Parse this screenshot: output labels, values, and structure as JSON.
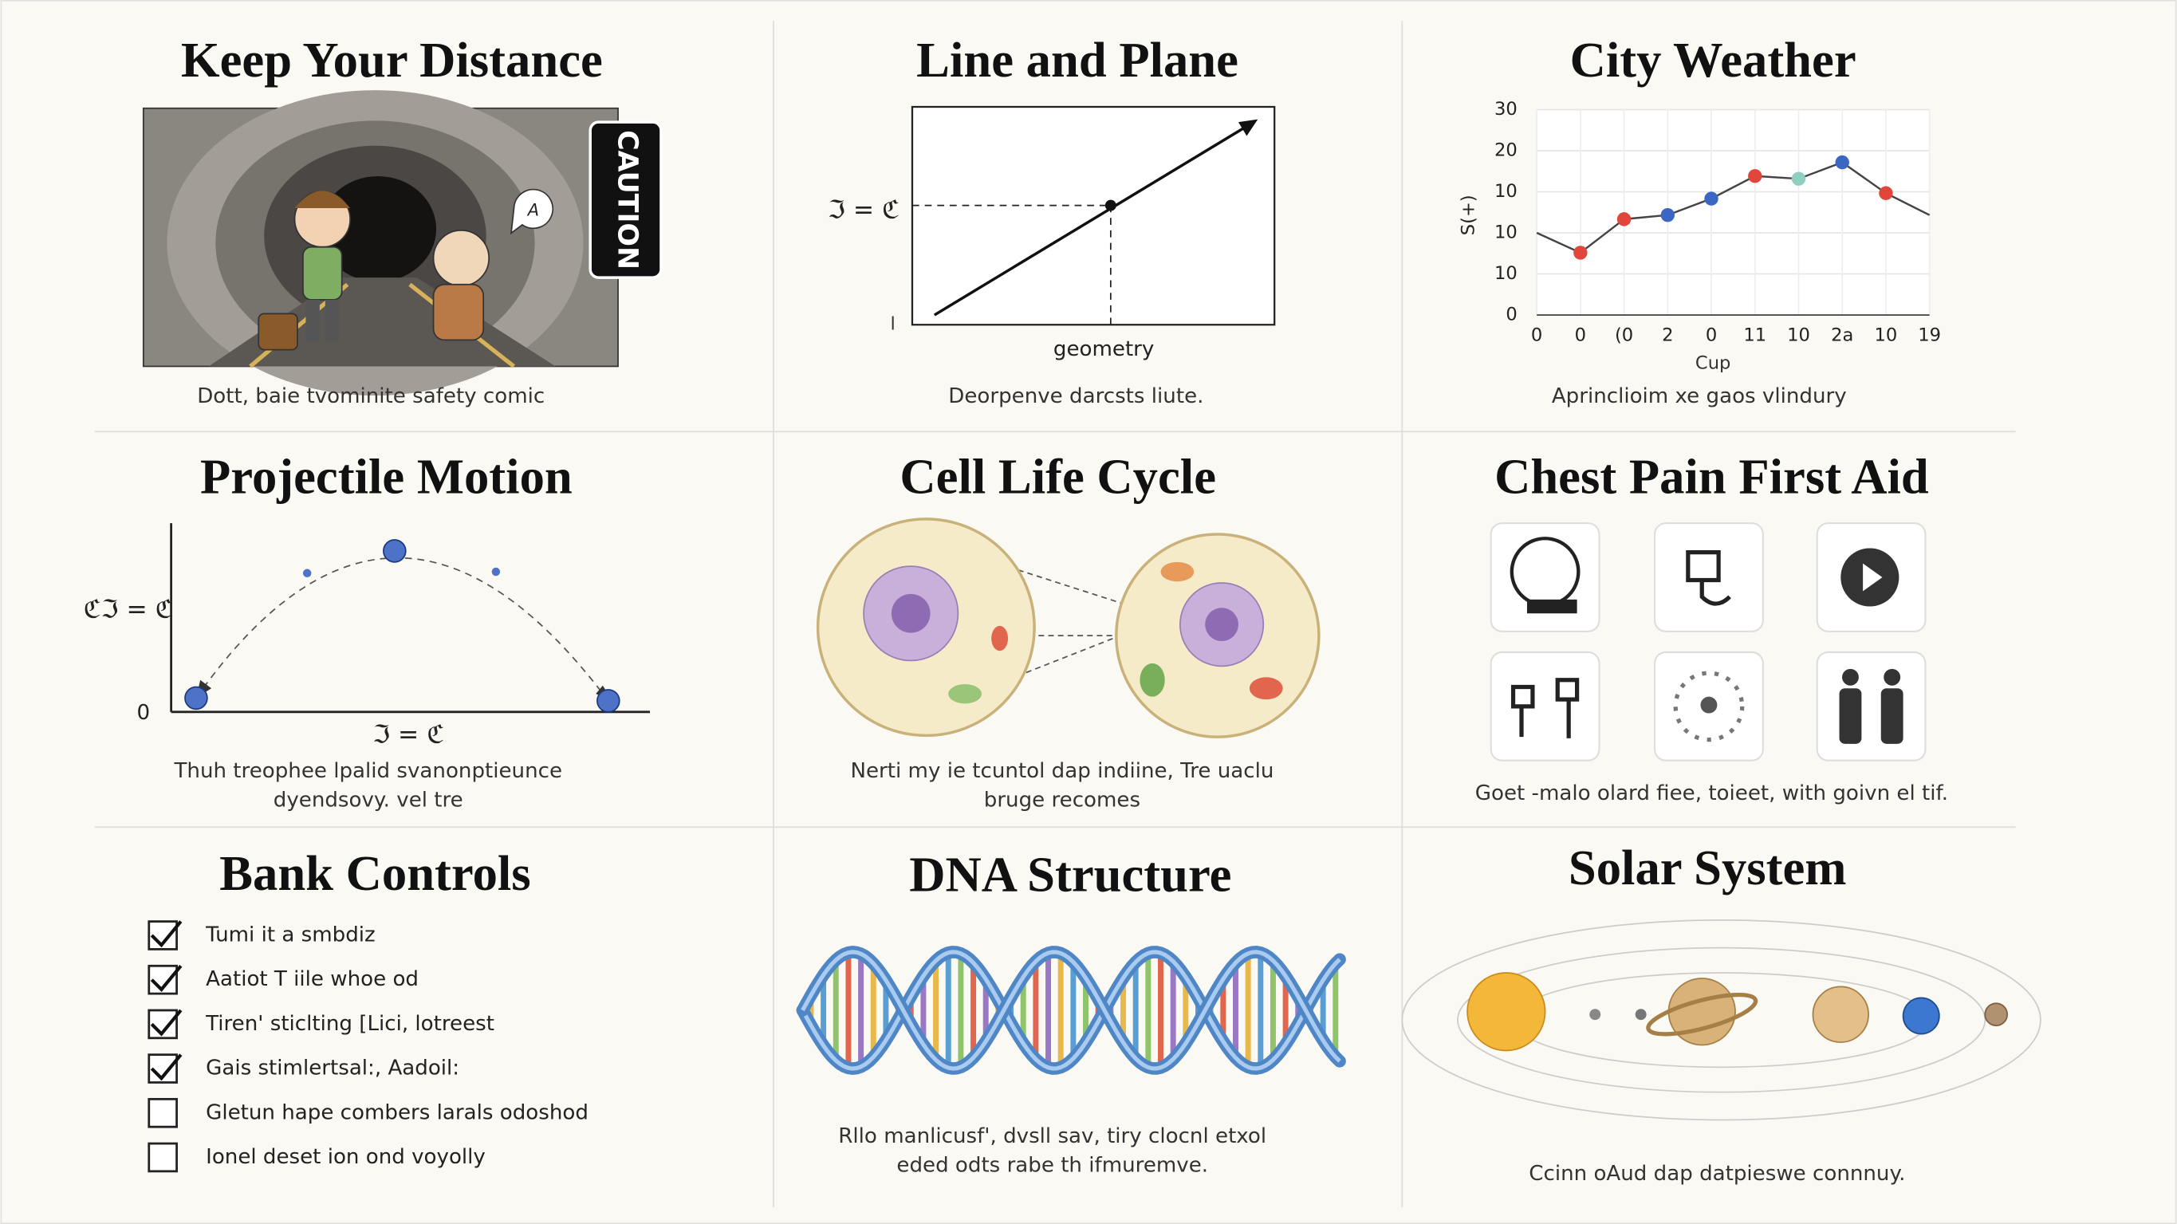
{
  "distance": {
    "title": "Keep Your Distance",
    "sign": "CAUTION",
    "bubble": "A",
    "caption": "Dott, baie tvominite safety comic"
  },
  "line_plane": {
    "title": "Line and Plane",
    "y_label": "ℑ = ℭ",
    "origin_label": "l",
    "x_label": "geometry",
    "caption": "Deorpenve darcsts liute."
  },
  "weather": {
    "type": "line",
    "title": "City Weather",
    "categories": [
      "0",
      "0",
      "(0",
      "2",
      "0",
      "11",
      "10",
      "2a",
      "10",
      "19"
    ],
    "values": [
      12.0,
      9.1,
      14.0,
      14.6,
      17.0,
      20.3,
      19.9,
      22.3,
      17.8,
      14.6
    ],
    "colors": [
      null,
      "#e0463c",
      "#e0463c",
      "#3a66c4",
      "#3a66c4",
      "#e0463c",
      "#8fcfc0",
      "#3a66c4",
      "#e0463c",
      null
    ],
    "line_color": "#444",
    "ylim": [
      0,
      30
    ],
    "yticks": [
      0,
      {
        "value": 6,
        "label": "10"
      },
      {
        "value": 12,
        "label": "10"
      },
      {
        "value": 18,
        "label": "10"
      },
      {
        "value": 24,
        "label": "20"
      },
      30
    ],
    "grid": true,
    "y_label": "S(+)",
    "x_label": "Cup",
    "caption": "Aprinclioim xe gaos vlindury"
  },
  "projectile": {
    "title": "Projectile Motion",
    "y_label": "ℭℑ = ℭ",
    "origin_label": "0",
    "x_label": "ℑ = ℭ",
    "caption": [
      "Thuh treophee lpalid svanonptieunce",
      "dyendsovy. vel tre"
    ]
  },
  "cell": {
    "title": "Cell Life Cycle",
    "caption": [
      "Nerti my ie tcuntol dap indiine, Tre uaclu",
      "bruge recomes"
    ]
  },
  "first_aid": {
    "title": "Chest Pain First Aid",
    "caption": "Goet -malo olard fiee, toieet, with goivn el tif."
  },
  "bank": {
    "title": "Bank Controls",
    "items": [
      {
        "label": "Tumi it a smbdiz",
        "checked": true
      },
      {
        "label": "Aatiot T iile whoe od",
        "checked": true
      },
      {
        "label": "Tiren' sticlting [Lici, lotreest",
        "checked": true
      },
      {
        "label": "Gais stimlertsal:, Aadoil:",
        "checked": true
      },
      {
        "label": "Gletun hape combers larals odoshod",
        "checked": false
      },
      {
        "label": "Ionel deset ion ond voyolly",
        "checked": false
      }
    ]
  },
  "dna": {
    "title": "DNA Structure",
    "caption": [
      "Rllo manlicusf', dvsll sav, tiry clocnl etxol",
      "eded odts rabe th ifmuremve."
    ]
  },
  "solar": {
    "title": "Solar System",
    "caption": "Ccinn oAud dap datpieswe connnuy."
  }
}
